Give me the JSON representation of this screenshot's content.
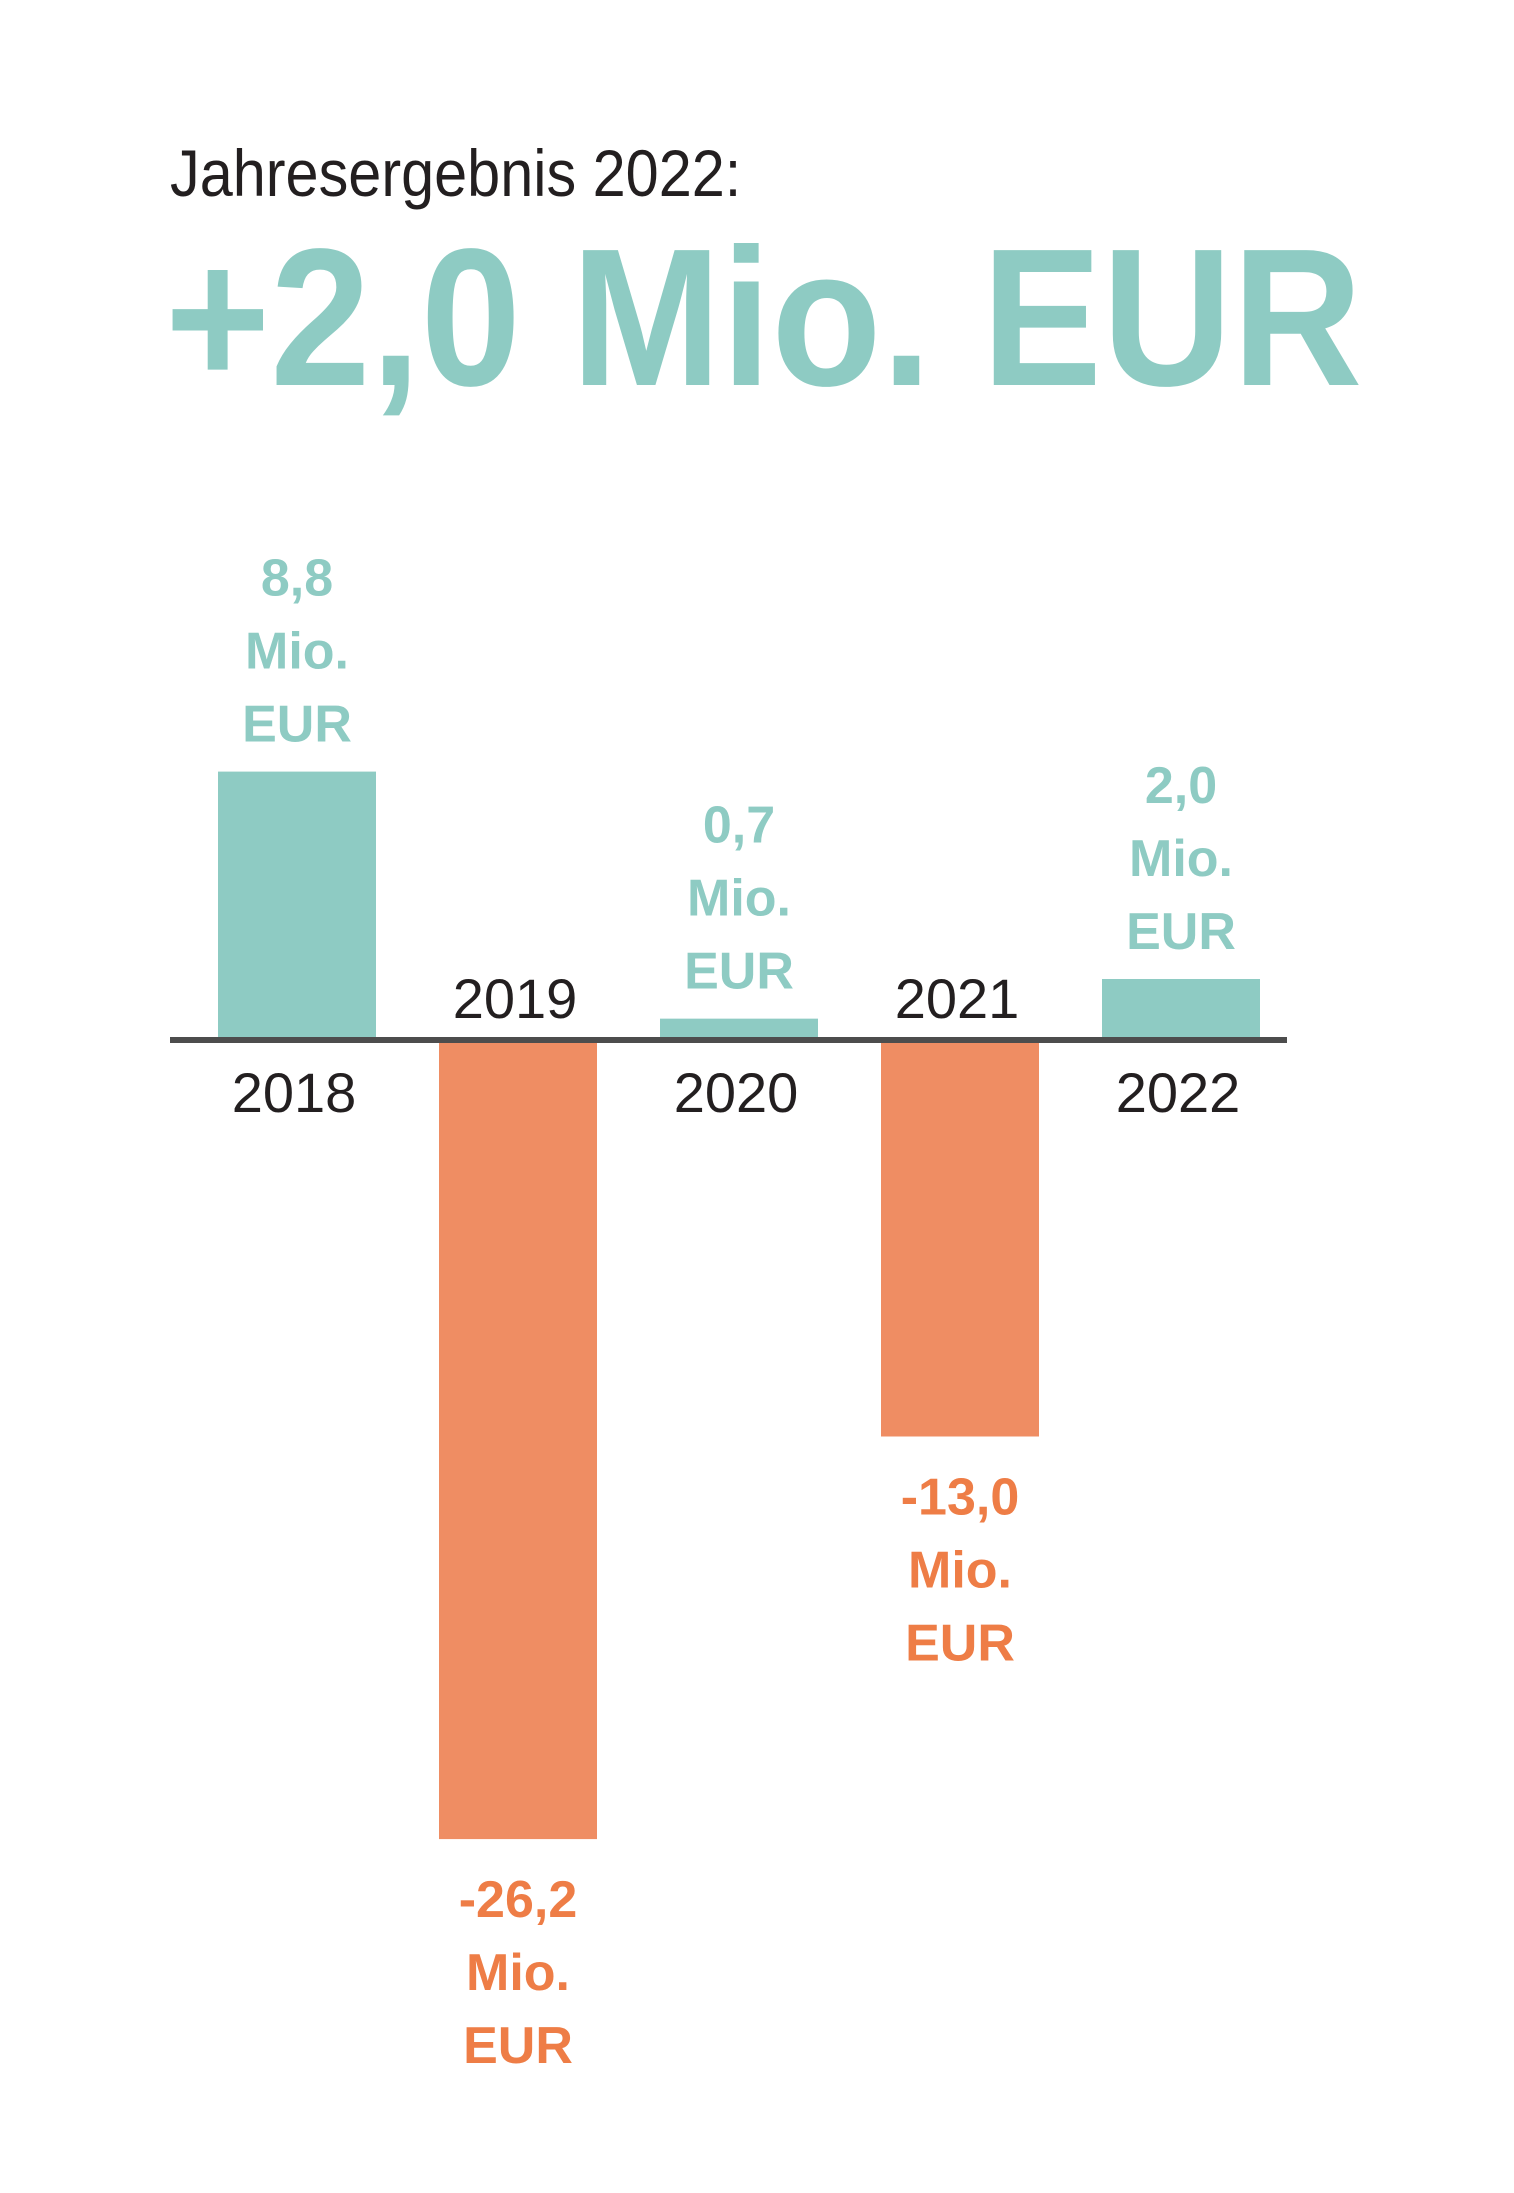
{
  "header": {
    "title": "Jahresergebnis 2022:",
    "headline": "+2,0 Mio. EUR"
  },
  "colors": {
    "positive": "#8ecbc3",
    "negative": "#ef8d63",
    "positive_text": "#8ecbc3",
    "negative_text": "#ee7d46",
    "axis": "#4d4d4d",
    "text": "#231f20"
  },
  "chart_data": {
    "type": "bar",
    "title": "",
    "xlabel": "",
    "ylabel": "",
    "categories": [
      "2018",
      "2019",
      "2020",
      "2021",
      "2022"
    ],
    "values": [
      8.8,
      -26.2,
      0.7,
      -13.0,
      2.0
    ],
    "value_labels": [
      [
        "8,8",
        "Mio.",
        "EUR"
      ],
      [
        "-26,2",
        "Mio.",
        "EUR"
      ],
      [
        "0,7",
        "Mio.",
        "EUR"
      ],
      [
        "-13,0",
        "Mio.",
        "EUR"
      ],
      [
        "2,0",
        "Mio.",
        "EUR"
      ]
    ],
    "unit": "Mio. EUR",
    "ylim": [
      -26.2,
      8.8
    ],
    "grid": false,
    "legend": "none"
  }
}
